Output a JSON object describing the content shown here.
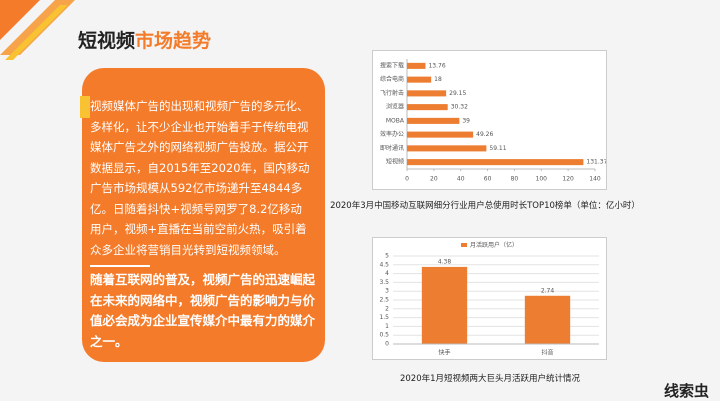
{
  "title_part1": "短视频",
  "title_part2": "市场趋势",
  "paragraph1": "视频媒体广告的出现和视频广告的多元化、多样化，让不少企业也开始着手于传统电视媒体广告之外的网络视频广告投放。据公开数据显示，自2015年至2020年，国内移动广告市场规模从592亿市场递升至4844多亿。日随着抖快+视频号网罗了8.2亿移动用户，视频+直播在当前空前火热，吸引着众多企业将营销目光转到短视频领域。",
  "paragraph2": "随着互联网的普及，视频广告的迅速崛起在未来的网络中，视频广告的影响力与价值必会成为企业宣传媒介中最有力的媒介之一。",
  "logo": "线索虫",
  "chart_data": [
    {
      "type": "hbar",
      "caption": "2020年3月中国移动互联网细分行业用户总使用时长TOP10榜单（单位：亿小时）",
      "categories": [
        "搜索下载",
        "综合电商",
        "飞行射击",
        "浏览器",
        "MOBA",
        "效率办公",
        "即时通讯",
        "短视频"
      ],
      "values": [
        13.76,
        18,
        29.15,
        30.32,
        39,
        49.26,
        59.11,
        131.37
      ],
      "color": "#ed7d31",
      "xlim": [
        0,
        140
      ],
      "xticks": [
        0,
        20,
        40,
        60,
        80,
        100,
        120,
        140
      ],
      "grid": false
    },
    {
      "type": "bar",
      "caption": "2020年1月短视频两大巨头月活跃用户统计情况",
      "categories": [
        "快手",
        "抖音"
      ],
      "series": [
        {
          "name": "月活跃用户（亿）",
          "color": "#ed7d31",
          "values": [
            4.38,
            2.74
          ]
        }
      ],
      "ylim": [
        0,
        5
      ],
      "yticks": [
        0,
        0.5,
        1,
        1.5,
        2,
        2.5,
        3,
        3.5,
        4,
        4.5,
        5
      ],
      "grid": true
    }
  ]
}
